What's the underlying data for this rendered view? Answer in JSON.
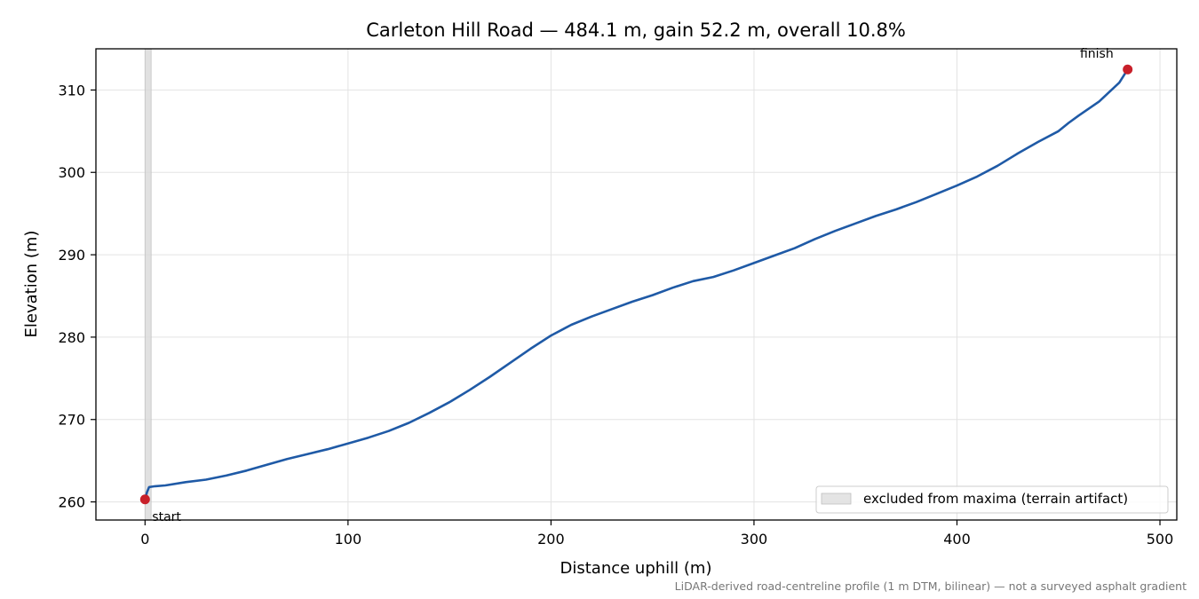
{
  "chart_data": {
    "type": "line",
    "title": "Carleton Hill Road — 484.1 m, gain 52.2 m, overall 10.8%",
    "xlabel": "Distance uphill (m)",
    "ylabel": "Elevation (m)",
    "xlim": [
      -24.2,
      508.3
    ],
    "ylim": [
      257.8,
      315.0
    ],
    "xticks": [
      0,
      100,
      200,
      300,
      400,
      500
    ],
    "yticks": [
      260,
      270,
      280,
      290,
      300,
      310
    ],
    "grid": true,
    "legend_position": "lower-right",
    "excluded_band": {
      "x_range": [
        0,
        3
      ],
      "label": "excluded from maxima (terrain artifact)",
      "color": "#d9d9d9"
    },
    "series": [
      {
        "color": "#1f5aa6",
        "x": [
          0,
          1,
          2,
          5,
          10,
          20,
          30,
          40,
          50,
          60,
          70,
          80,
          90,
          100,
          110,
          120,
          130,
          140,
          150,
          160,
          170,
          180,
          190,
          200,
          210,
          220,
          230,
          240,
          250,
          260,
          270,
          280,
          290,
          300,
          310,
          320,
          330,
          340,
          350,
          360,
          370,
          380,
          390,
          400,
          410,
          420,
          430,
          440,
          450,
          455,
          460,
          470,
          480,
          484.1
        ],
        "y": [
          260.3,
          261.2,
          261.8,
          261.9,
          262.0,
          262.4,
          262.7,
          263.2,
          263.8,
          264.5,
          265.2,
          265.8,
          266.4,
          267.1,
          267.8,
          268.6,
          269.6,
          270.8,
          272.1,
          273.6,
          275.2,
          276.9,
          278.6,
          280.2,
          281.5,
          282.5,
          283.4,
          284.3,
          285.1,
          286.0,
          286.8,
          287.3,
          288.1,
          289.0,
          289.9,
          290.8,
          291.9,
          292.9,
          293.8,
          294.7,
          295.5,
          296.4,
          297.4,
          298.4,
          299.5,
          300.8,
          302.3,
          303.7,
          305.0,
          306.0,
          306.9,
          308.6,
          310.9,
          312.5
        ]
      }
    ],
    "markers": [
      {
        "x": 0,
        "y": 260.3,
        "label": "start",
        "color": "#c8202a"
      },
      {
        "x": 484.1,
        "y": 312.5,
        "label": "finish",
        "color": "#c8202a"
      }
    ],
    "footnote": "LiDAR-derived road-centreline profile (1 m DTM, bilinear) — not a surveyed asphalt gradient"
  }
}
